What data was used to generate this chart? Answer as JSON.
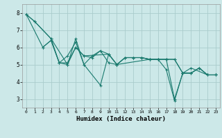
{
  "title": "",
  "xlabel": "Humidex (Indice chaleur)",
  "bg_color": "#cce8e8",
  "line_color": "#1a7a6e",
  "grid_color": "#aacccc",
  "xlim": [
    -0.5,
    23.5
  ],
  "ylim": [
    2.5,
    8.5
  ],
  "xticks": [
    0,
    1,
    2,
    3,
    4,
    5,
    6,
    7,
    8,
    9,
    10,
    11,
    12,
    13,
    14,
    15,
    16,
    17,
    18,
    19,
    20,
    21,
    22,
    23
  ],
  "yticks": [
    3,
    4,
    5,
    6,
    7,
    8
  ],
  "series": [
    {
      "x": [
        0,
        1,
        3,
        4,
        5,
        6,
        7,
        8,
        9,
        10,
        11,
        12,
        13,
        14,
        15,
        16,
        17,
        18,
        19,
        20,
        21,
        22,
        23
      ],
      "y": [
        7.9,
        7.5,
        6.5,
        5.1,
        5.5,
        6.3,
        5.0,
        5.5,
        5.8,
        5.1,
        5.0,
        5.4,
        5.4,
        5.4,
        5.3,
        5.3,
        4.7,
        2.9,
        4.5,
        4.5,
        4.8,
        4.4,
        4.4
      ]
    },
    {
      "x": [
        0,
        2,
        3,
        4,
        5,
        6,
        7,
        10,
        11,
        12,
        13,
        14,
        15,
        16,
        17,
        18,
        19,
        20,
        21,
        22,
        23
      ],
      "y": [
        7.9,
        6.0,
        6.4,
        5.1,
        5.0,
        6.0,
        5.5,
        5.6,
        5.0,
        5.4,
        5.4,
        5.4,
        5.3,
        5.3,
        5.3,
        5.3,
        4.5,
        4.5,
        4.8,
        4.4,
        4.4
      ]
    },
    {
      "x": [
        0,
        1,
        3,
        5,
        6,
        7,
        9,
        10,
        11,
        15,
        16,
        17,
        18,
        19,
        20,
        22,
        23
      ],
      "y": [
        7.9,
        7.5,
        6.5,
        5.0,
        6.5,
        5.0,
        3.8,
        5.6,
        5.0,
        5.3,
        5.3,
        5.3,
        5.3,
        4.5,
        4.8,
        4.4,
        4.4
      ]
    },
    {
      "x": [
        2,
        3,
        4,
        5,
        6,
        7,
        8,
        9,
        10,
        11,
        12,
        13,
        14,
        15,
        16,
        17,
        18,
        19,
        20,
        21,
        22,
        23
      ],
      "y": [
        6.0,
        6.4,
        5.1,
        5.1,
        6.0,
        5.5,
        5.4,
        5.8,
        5.6,
        5.0,
        5.4,
        5.4,
        5.4,
        5.3,
        5.3,
        5.3,
        3.0,
        4.5,
        4.5,
        4.8,
        4.4,
        4.4
      ]
    }
  ]
}
